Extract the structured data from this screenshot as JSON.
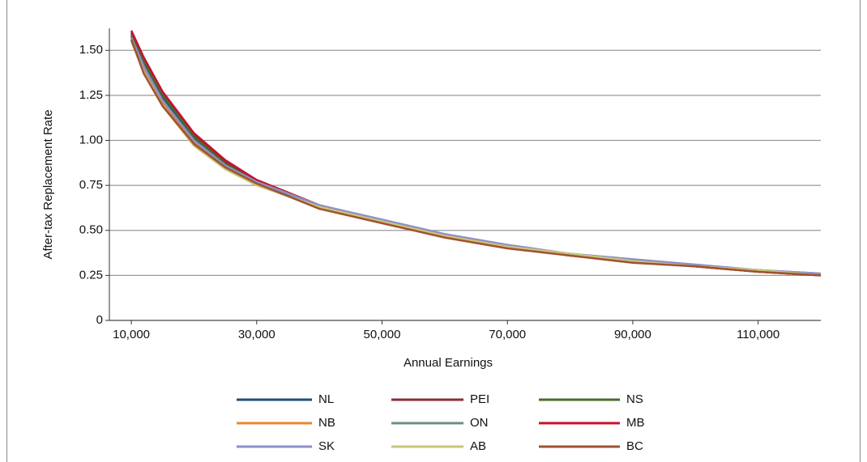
{
  "chart_data": {
    "type": "line",
    "x_label": "Annual Earnings",
    "y_label": "After-tax Replacement Rate",
    "x": [
      10000,
      12000,
      15000,
      20000,
      25000,
      30000,
      40000,
      50000,
      60000,
      70000,
      80000,
      90000,
      100000,
      110000,
      120000
    ],
    "series": [
      {
        "name": "NL",
        "color": "#1f4e79",
        "values": [
          1.58,
          1.43,
          1.24,
          1.01,
          0.87,
          0.77,
          0.63,
          0.55,
          0.47,
          0.41,
          0.37,
          0.33,
          0.3,
          0.28,
          0.25
        ]
      },
      {
        "name": "PEI",
        "color": "#8b2c35",
        "values": [
          1.6,
          1.45,
          1.26,
          1.03,
          0.88,
          0.78,
          0.64,
          0.55,
          0.47,
          0.41,
          0.36,
          0.33,
          0.3,
          0.27,
          0.25
        ]
      },
      {
        "name": "NS",
        "color": "#4a6b2a",
        "values": [
          1.59,
          1.44,
          1.25,
          1.02,
          0.87,
          0.77,
          0.63,
          0.55,
          0.47,
          0.41,
          0.37,
          0.33,
          0.3,
          0.28,
          0.25
        ]
      },
      {
        "name": "NB",
        "color": "#e8892b",
        "values": [
          1.56,
          1.4,
          1.21,
          0.99,
          0.86,
          0.76,
          0.63,
          0.55,
          0.47,
          0.41,
          0.37,
          0.33,
          0.3,
          0.28,
          0.25
        ]
      },
      {
        "name": "ON",
        "color": "#6b9080",
        "values": [
          1.57,
          1.41,
          1.22,
          1.0,
          0.86,
          0.77,
          0.63,
          0.55,
          0.47,
          0.41,
          0.37,
          0.33,
          0.3,
          0.28,
          0.26
        ]
      },
      {
        "name": "MB",
        "color": "#c8102e",
        "values": [
          1.61,
          1.46,
          1.27,
          1.04,
          0.89,
          0.78,
          0.64,
          0.55,
          0.47,
          0.41,
          0.36,
          0.33,
          0.3,
          0.27,
          0.25
        ]
      },
      {
        "name": "SK",
        "color": "#8c8fc9",
        "values": [
          1.57,
          1.41,
          1.22,
          1.0,
          0.86,
          0.77,
          0.64,
          0.56,
          0.48,
          0.42,
          0.37,
          0.34,
          0.31,
          0.28,
          0.26
        ]
      },
      {
        "name": "AB",
        "color": "#c9c47a",
        "values": [
          1.55,
          1.38,
          1.19,
          0.97,
          0.84,
          0.75,
          0.63,
          0.55,
          0.47,
          0.41,
          0.37,
          0.33,
          0.3,
          0.28,
          0.25
        ]
      },
      {
        "name": "BC",
        "color": "#a0522d",
        "values": [
          1.56,
          1.37,
          1.19,
          0.98,
          0.85,
          0.76,
          0.62,
          0.54,
          0.46,
          0.4,
          0.36,
          0.32,
          0.3,
          0.27,
          0.25
        ]
      }
    ],
    "xlim": [
      6500,
      120000
    ],
    "ylim": [
      0,
      1.6
    ],
    "xticks": [
      {
        "value": 10000,
        "label": "10,000"
      },
      {
        "value": 30000,
        "label": "30,000"
      },
      {
        "value": 50000,
        "label": "50,000"
      },
      {
        "value": 70000,
        "label": "70,000"
      },
      {
        "value": 90000,
        "label": "90,000"
      },
      {
        "value": 110000,
        "label": "110,000"
      }
    ],
    "yticks": [
      0,
      {
        "value": 0.25,
        "label": "0.25"
      },
      {
        "value": 0.5,
        "label": "0.50"
      },
      {
        "value": 0.75,
        "label": "0.75"
      },
      {
        "value": 1,
        "label": "1.00"
      },
      {
        "value": 1.25,
        "label": "1.25"
      },
      {
        "value": 1.5,
        "label": "1.50"
      }
    ],
    "grid": true,
    "legend": "bottom"
  }
}
